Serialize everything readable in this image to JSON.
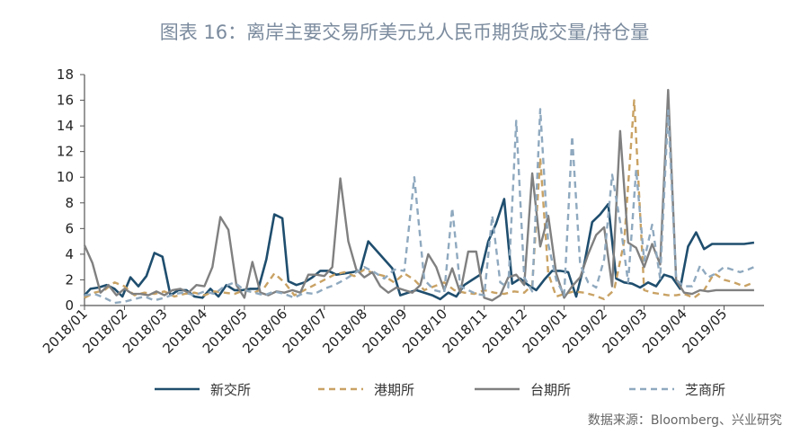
{
  "title": "图表 16：离岸主要交易所美元兑人民币期货成交量/持仓量",
  "source": "数据来源：Bloomberg、兴业研究",
  "colors": {
    "xinjiao": "#1f4e6e",
    "gangqi": "#c9a264",
    "taiqi": "#808080",
    "zhishang": "#8fa9bf",
    "axis": "#555555"
  },
  "chart_data": {
    "type": "line",
    "title": "图表 16：离岸主要交易所美元兑人民币期货成交量/持仓量",
    "xlabel": "",
    "ylabel": "",
    "ylim": [
      0,
      18
    ],
    "yticks": [
      "0",
      "2",
      "4",
      "6",
      "8",
      "10",
      "12",
      "14",
      "16",
      "18"
    ],
    "categories": [
      "2018/01",
      "2018/02",
      "2018/03",
      "2018/04",
      "2018/05",
      "2018/06",
      "2018/07",
      "2018/08",
      "2018/09",
      "2018/10",
      "2018/11",
      "2018/12",
      "2019/01",
      "2019/02",
      "2019/03",
      "2019/04",
      "2019/05"
    ],
    "x_range": [
      0,
      17
    ],
    "grid": false,
    "legend": "bottom",
    "series": [
      {
        "name": "新交所",
        "style": "solid",
        "x": [
          0,
          0.15,
          0.35,
          0.55,
          0.75,
          0.95,
          1.15,
          1.35,
          1.55,
          1.75,
          1.95,
          2.15,
          2.35,
          2.55,
          2.75,
          2.95,
          3.15,
          3.35,
          3.55,
          3.75,
          3.95,
          4.15,
          4.35,
          4.55,
          4.75,
          4.95,
          5.1,
          5.3,
          5.5,
          5.7,
          5.9,
          6.1,
          6.3,
          6.5,
          6.7,
          6.9,
          7.1,
          7.3,
          7.5,
          7.7,
          7.9,
          8.1,
          8.3,
          8.5,
          8.7,
          8.9,
          9.1,
          9.3,
          9.5,
          9.7,
          9.9,
          10.1,
          10.3,
          10.5,
          10.7,
          10.9,
          11.1,
          11.3,
          11.5,
          11.7,
          11.9,
          12.1,
          12.3,
          12.5,
          12.7,
          12.9,
          13.1,
          13.3,
          13.5,
          13.7,
          13.9,
          14.1,
          14.3,
          14.5,
          14.7,
          14.9,
          15.1,
          15.3,
          15.5,
          15.7,
          15.9,
          16.1,
          16.3,
          16.5,
          16.75
        ],
        "values": [
          0.8,
          1.3,
          1.4,
          1.6,
          1.3,
          0.7,
          2.2,
          1.5,
          2.3,
          4.1,
          3.8,
          0.8,
          1.2,
          1.2,
          0.7,
          0.6,
          1.3,
          0.7,
          1.6,
          1.2,
          1.2,
          1.3,
          1.3,
          3.6,
          7.1,
          6.8,
          1.9,
          1.6,
          1.8,
          2.2,
          2.7,
          2.7,
          2.4,
          2.5,
          2.6,
          2.7,
          5.0,
          4.3,
          3.6,
          2.9,
          0.8,
          1.0,
          1.2,
          1.0,
          0.8,
          0.5,
          1.0,
          0.7,
          1.6,
          2.0,
          2.4,
          5.0,
          6.4,
          8.3,
          1.7,
          2.1,
          1.6,
          1.2,
          2.0,
          2.7,
          2.7,
          2.6,
          0.7,
          3.2,
          6.5,
          7.1,
          7.9,
          2.1,
          1.8,
          1.7,
          1.4,
          1.8,
          1.5,
          2.4,
          2.2,
          1.3,
          4.6,
          5.7,
          4.4,
          4.8,
          4.8,
          4.8,
          4.8,
          4.8,
          4.9
        ]
      },
      {
        "name": "港期所",
        "style": "dashed",
        "x": [
          0,
          0.25,
          0.5,
          0.75,
          1.0,
          1.25,
          1.5,
          1.75,
          2.0,
          2.25,
          2.5,
          2.75,
          3.0,
          3.25,
          3.5,
          3.75,
          4.0,
          4.25,
          4.5,
          4.75,
          5.0,
          5.25,
          5.5,
          5.75,
          6.0,
          6.25,
          6.5,
          6.75,
          7.0,
          7.25,
          7.5,
          7.75,
          8.0,
          8.25,
          8.5,
          8.75,
          9.0,
          9.25,
          9.5,
          9.75,
          10.0,
          10.25,
          10.5,
          10.75,
          11.0,
          11.2,
          11.4,
          11.6,
          11.8,
          12.0,
          12.25,
          12.5,
          12.75,
          13.0,
          13.25,
          13.5,
          13.75,
          14.0,
          14.2,
          14.4,
          14.6,
          14.8,
          15.0,
          15.25,
          15.5,
          15.75,
          16.0,
          16.25,
          16.5,
          16.75
        ],
        "values": [
          0.6,
          1.0,
          1.2,
          1.8,
          1.5,
          0.8,
          1.0,
          0.9,
          1.1,
          0.7,
          0.9,
          1.0,
          0.8,
          1.1,
          1.0,
          0.9,
          1.2,
          1.0,
          1.4,
          2.5,
          1.8,
          0.8,
          1.2,
          1.6,
          2.0,
          2.4,
          2.6,
          2.3,
          2.8,
          2.5,
          2.3,
          1.8,
          2.5,
          2.0,
          1.2,
          1.5,
          1.8,
          1.2,
          1.0,
          0.9,
          1.2,
          1.0,
          0.9,
          1.1,
          1.0,
          1.6,
          11.5,
          2.5,
          0.7,
          0.9,
          1.1,
          1.0,
          0.8,
          0.5,
          1.2,
          5.0,
          16.0,
          1.2,
          1.0,
          0.9,
          0.8,
          0.8,
          0.9,
          0.6,
          1.2,
          2.5,
          2.0,
          1.8,
          1.5,
          1.8
        ]
      },
      {
        "name": "台期所",
        "style": "solid",
        "x": [
          0,
          0.2,
          0.4,
          0.6,
          0.8,
          1.0,
          1.2,
          1.4,
          1.6,
          1.8,
          2.0,
          2.2,
          2.4,
          2.6,
          2.8,
          3.0,
          3.2,
          3.4,
          3.6,
          3.8,
          4.0,
          4.2,
          4.4,
          4.6,
          4.8,
          5.0,
          5.2,
          5.4,
          5.6,
          5.8,
          6.0,
          6.2,
          6.4,
          6.6,
          6.8,
          7.0,
          7.2,
          7.4,
          7.6,
          7.8,
          8.0,
          8.2,
          8.4,
          8.6,
          8.8,
          9.0,
          9.2,
          9.4,
          9.6,
          9.8,
          10.0,
          10.2,
          10.4,
          10.6,
          10.8,
          11.0,
          11.2,
          11.4,
          11.6,
          11.8,
          12.0,
          12.2,
          12.4,
          12.6,
          12.8,
          13.0,
          13.2,
          13.4,
          13.6,
          13.8,
          14.0,
          14.2,
          14.4,
          14.6,
          14.8,
          15.0,
          15.2,
          15.4,
          15.6,
          15.8,
          16.0,
          16.2,
          16.4,
          16.6,
          16.75
        ],
        "values": [
          4.7,
          3.3,
          1.0,
          1.6,
          0.8,
          1.3,
          0.9,
          0.9,
          0.8,
          1.1,
          0.8,
          1.2,
          1.3,
          1.0,
          1.6,
          1.5,
          3.0,
          6.9,
          5.9,
          1.6,
          0.6,
          3.4,
          1.0,
          0.8,
          1.1,
          1.0,
          1.2,
          1.0,
          2.4,
          2.4,
          2.3,
          3.0,
          9.9,
          5.0,
          2.8,
          2.2,
          2.6,
          1.5,
          1.0,
          1.4,
          1.2,
          1.0,
          1.6,
          4.0,
          3.0,
          1.2,
          2.9,
          1.0,
          4.2,
          4.2,
          0.6,
          0.4,
          0.8,
          2.2,
          2.4,
          1.6,
          10.3,
          4.6,
          7.0,
          2.5,
          0.6,
          1.5,
          2.2,
          4.0,
          5.5,
          6.1,
          1.5,
          13.6,
          4.9,
          4.5,
          3.0,
          4.8,
          3.2,
          16.8,
          2.0,
          1.0,
          0.9,
          1.2,
          1.1,
          1.2,
          1.2,
          1.2,
          1.2,
          1.2,
          1.2
        ]
      },
      {
        "name": "芝商所",
        "style": "dashed",
        "x": [
          0,
          0.25,
          0.5,
          0.75,
          1.0,
          1.25,
          1.5,
          1.75,
          2.0,
          2.25,
          2.5,
          2.75,
          3.0,
          3.25,
          3.5,
          3.75,
          4.0,
          4.25,
          4.5,
          4.75,
          5.0,
          5.25,
          5.5,
          5.75,
          6.0,
          6.25,
          6.5,
          6.75,
          7.0,
          7.25,
          7.5,
          7.75,
          8.0,
          8.25,
          8.5,
          8.75,
          9.0,
          9.2,
          9.4,
          9.6,
          9.8,
          10.0,
          10.2,
          10.4,
          10.6,
          10.8,
          11.0,
          11.2,
          11.4,
          11.6,
          11.8,
          12.0,
          12.2,
          12.4,
          12.6,
          12.8,
          13.0,
          13.2,
          13.4,
          13.6,
          13.8,
          14.0,
          14.2,
          14.4,
          14.6,
          14.8,
          15.0,
          15.2,
          15.4,
          15.6,
          15.8,
          16.0,
          16.2,
          16.4,
          16.6,
          16.75
        ],
        "values": [
          0.8,
          0.9,
          0.6,
          0.2,
          0.3,
          0.5,
          0.7,
          0.4,
          0.6,
          0.9,
          1.0,
          0.8,
          1.1,
          0.9,
          1.5,
          1.8,
          1.2,
          1.0,
          0.8,
          1.1,
          0.9,
          0.6,
          1.0,
          0.9,
          1.3,
          1.6,
          2.0,
          2.5,
          3.0,
          2.6,
          2.1,
          2.8,
          2.7,
          10.0,
          2.0,
          1.2,
          1.0,
          7.6,
          1.5,
          1.2,
          0.9,
          0.8,
          7.0,
          1.8,
          1.4,
          14.4,
          2.2,
          1.1,
          15.3,
          4.8,
          2.0,
          0.8,
          13.2,
          3.2,
          1.8,
          1.4,
          3.6,
          10.2,
          6.5,
          1.8,
          10.6,
          3.5,
          6.3,
          2.1,
          15.2,
          2.0,
          1.5,
          1.5,
          3.1,
          2.2,
          2.5,
          3.0,
          2.8,
          2.6,
          2.8,
          3.0
        ]
      }
    ]
  },
  "legend": {
    "items": [
      "新交所",
      "港期所",
      "台期所",
      "芝商所"
    ]
  }
}
